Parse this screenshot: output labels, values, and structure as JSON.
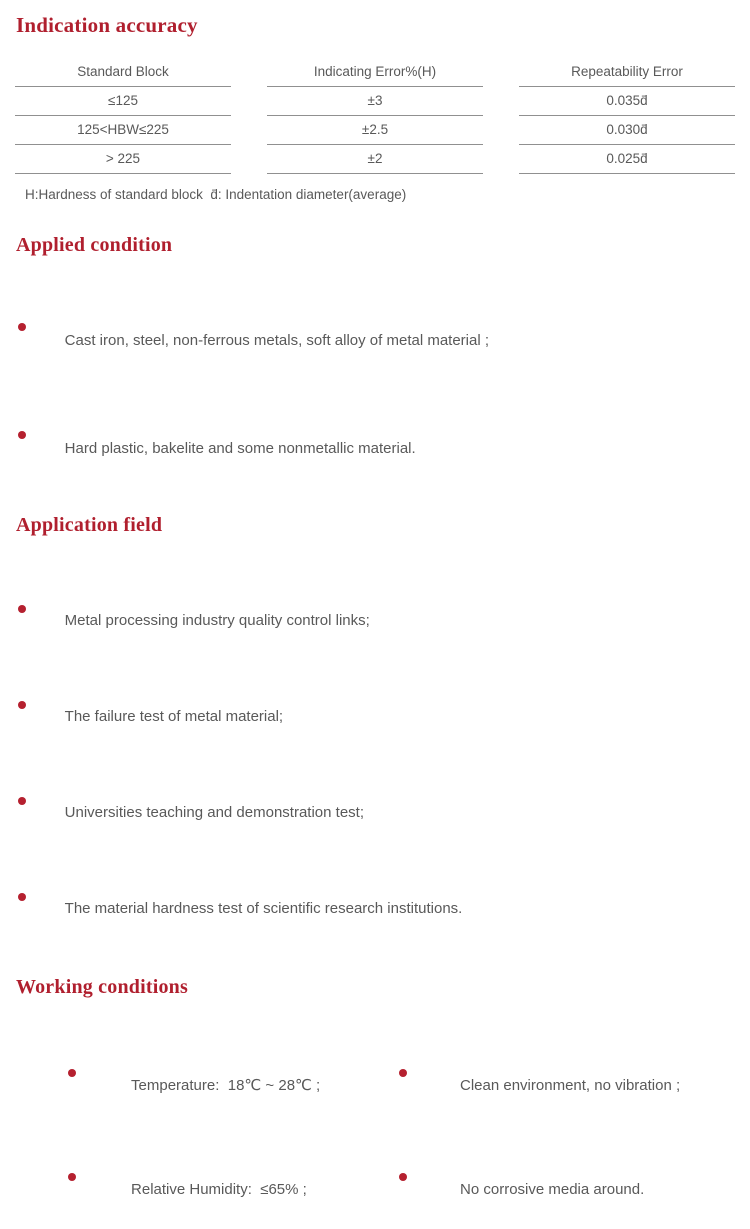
{
  "theme": {
    "accent_red": "#b01f2e",
    "bullet_red": "#b5202f",
    "text_gray": "#595959",
    "line_gray": "#909090",
    "background": "#ffffff"
  },
  "indication": {
    "title": "Indication accuracy",
    "table": {
      "headers": [
        "Standard Block",
        "Indicating Error%(H)",
        "Repeatability Error"
      ],
      "rows": [
        [
          "≤125",
          "±3",
          "0.035d̄"
        ],
        [
          "125<HBW≤225",
          "±2.5",
          "0.030d̄"
        ],
        [
          "> 225",
          "±2",
          "0.025d̄"
        ]
      ]
    },
    "footnote": "H:Hardness of standard block  d̄: Indentation diameter(average)"
  },
  "applied": {
    "title": "Applied condition",
    "items": [
      "Cast iron, steel, non-ferrous metals, soft alloy of metal material ;",
      "Hard plastic, bakelite and some nonmetallic material."
    ]
  },
  "application": {
    "title": "Application field",
    "items": [
      "Metal processing industry quality control links;",
      "The failure test of metal material;",
      "Universities teaching and demonstration test;",
      "The material hardness test of scientific research institutions."
    ]
  },
  "working": {
    "title": "Working conditions",
    "left_items": [
      "Temperature:  18℃ ~ 28℃ ;",
      "Relative Humidity:  ≤65% ;"
    ],
    "right_items": [
      "Clean environment, no vibration ;",
      "No corrosive media around."
    ]
  }
}
